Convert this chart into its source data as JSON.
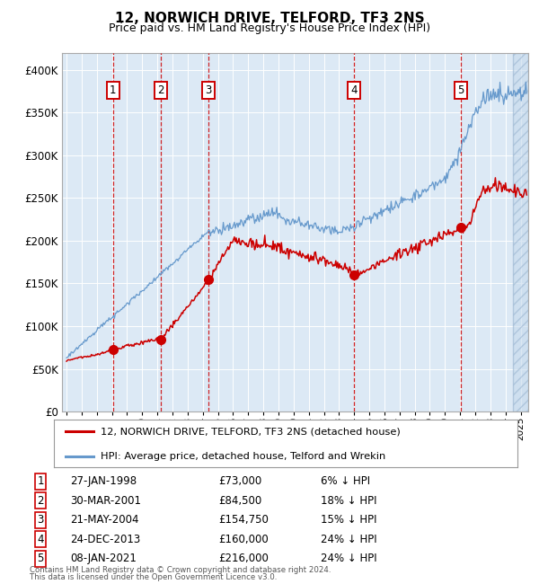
{
  "title": "12, NORWICH DRIVE, TELFORD, TF3 2NS",
  "subtitle": "Price paid vs. HM Land Registry's House Price Index (HPI)",
  "footer1": "Contains HM Land Registry data © Crown copyright and database right 2024.",
  "footer2": "This data is licensed under the Open Government Licence v3.0.",
  "legend_red": "12, NORWICH DRIVE, TELFORD, TF3 2NS (detached house)",
  "legend_blue": "HPI: Average price, detached house, Telford and Wrekin",
  "xlim_start": 1994.7,
  "xlim_end": 2025.5,
  "ylim_min": 0,
  "ylim_max": 420000,
  "yticks": [
    0,
    50000,
    100000,
    150000,
    200000,
    250000,
    300000,
    350000,
    400000
  ],
  "ytick_labels": [
    "£0",
    "£50K",
    "£100K",
    "£150K",
    "£200K",
    "£250K",
    "£300K",
    "£350K",
    "£400K"
  ],
  "transactions": [
    {
      "num": 1,
      "date": "27-JAN-1998",
      "price": 73000,
      "year": 1998.07,
      "pct": "6%",
      "dir": "↓"
    },
    {
      "num": 2,
      "date": "30-MAR-2001",
      "price": 84500,
      "year": 2001.25,
      "pct": "18%",
      "dir": "↓"
    },
    {
      "num": 3,
      "date": "21-MAY-2004",
      "price": 154750,
      "year": 2004.39,
      "pct": "15%",
      "dir": "↓"
    },
    {
      "num": 4,
      "date": "24-DEC-2013",
      "price": 160000,
      "year": 2013.98,
      "pct": "24%",
      "dir": "↓"
    },
    {
      "num": 5,
      "date": "08-JAN-2021",
      "price": 216000,
      "year": 2021.03,
      "pct": "24%",
      "dir": "↓"
    }
  ],
  "bg_color": "#dce9f5",
  "grid_color": "#ffffff",
  "red_line_color": "#cc0000",
  "blue_line_color": "#6699cc",
  "dashed_vline_color": "#cc0000",
  "transaction_box_color": "#cc0000",
  "hatch_start": 2024.5
}
